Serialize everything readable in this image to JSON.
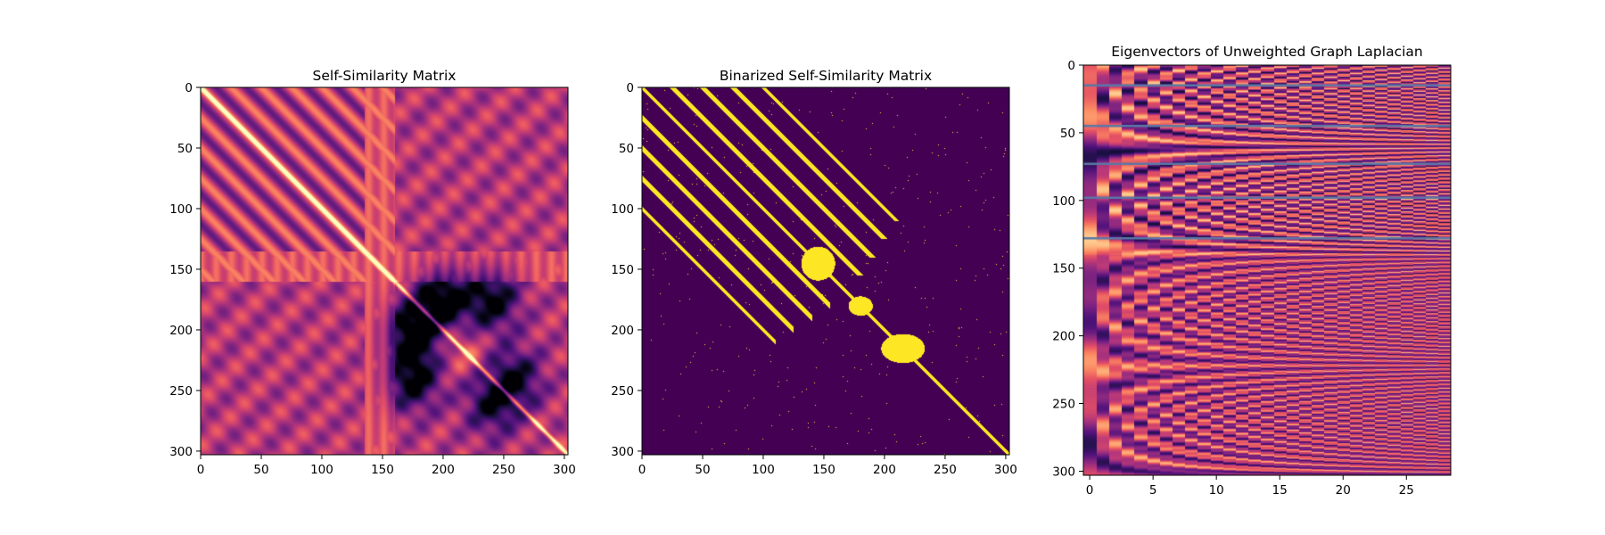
{
  "chart_data": [
    {
      "type": "heatmap",
      "title": "Self-Similarity Matrix",
      "colormap": "magma",
      "xlim": [
        0,
        303
      ],
      "ylim": [
        303,
        0
      ],
      "xticks": [
        0,
        50,
        100,
        150,
        200,
        250,
        300
      ],
      "yticks": [
        0,
        50,
        100,
        150,
        200,
        250,
        300
      ],
      "diagonal_stripe_offsets": [
        0,
        25,
        50,
        75,
        100,
        150,
        175
      ],
      "dark_regions": [
        {
          "x": 175,
          "y": 200,
          "value": 0.0
        },
        {
          "x": 200,
          "y": 175,
          "value": 0.0
        },
        {
          "x": 240,
          "y": 175,
          "value": 0.05
        },
        {
          "x": 175,
          "y": 240,
          "value": 0.05
        },
        {
          "x": 240,
          "y": 260,
          "value": 0.15
        },
        {
          "x": 260,
          "y": 240,
          "value": 0.15
        }
      ]
    },
    {
      "type": "heatmap",
      "title": "Binarized Self-Similarity Matrix",
      "colormap": "viridis-binary",
      "colors": {
        "off": "#440154",
        "on": "#fde725"
      },
      "xlim": [
        0,
        303
      ],
      "ylim": [
        303,
        0
      ],
      "xticks": [
        0,
        50,
        100,
        150,
        200,
        250,
        300
      ],
      "yticks": [
        0,
        50,
        100,
        150,
        200,
        250,
        300
      ],
      "on_bands": [
        {
          "offset": 0,
          "start": 0,
          "end": 303,
          "width": 4
        },
        {
          "offset": 25,
          "start": 0,
          "end": 155,
          "width": 5
        },
        {
          "offset": 50,
          "start": 0,
          "end": 140,
          "width": 5
        },
        {
          "offset": 75,
          "start": 0,
          "end": 125,
          "width": 5
        },
        {
          "offset": 100,
          "start": 0,
          "end": 110,
          "width": 4
        },
        {
          "offset": -25,
          "start": 0,
          "end": 155,
          "width": 5
        },
        {
          "offset": -50,
          "start": 0,
          "end": 140,
          "width": 5
        },
        {
          "offset": -75,
          "start": 0,
          "end": 125,
          "width": 5
        },
        {
          "offset": -100,
          "start": 0,
          "end": 110,
          "width": 4
        }
      ],
      "on_blobs": [
        {
          "x": 145,
          "y": 145,
          "rx": 14,
          "ry": 14
        },
        {
          "x": 215,
          "y": 215,
          "rx": 18,
          "ry": 12
        },
        {
          "x": 180,
          "y": 180,
          "rx": 10,
          "ry": 8
        }
      ]
    },
    {
      "type": "heatmap",
      "title": "Eigenvectors of Unweighted Graph Laplacian",
      "colormap": "magma",
      "xlim": [
        -0.5,
        28.5
      ],
      "ylim": [
        303,
        0
      ],
      "xticks": [
        0,
        5,
        10,
        15,
        20,
        25
      ],
      "yticks": [
        0,
        50,
        100,
        150,
        200,
        250,
        300
      ],
      "n_columns": 29,
      "n_rows": 303,
      "boundary_rows": [
        15,
        45,
        73,
        98,
        128
      ],
      "boundary_color": "#5a78a6"
    }
  ]
}
